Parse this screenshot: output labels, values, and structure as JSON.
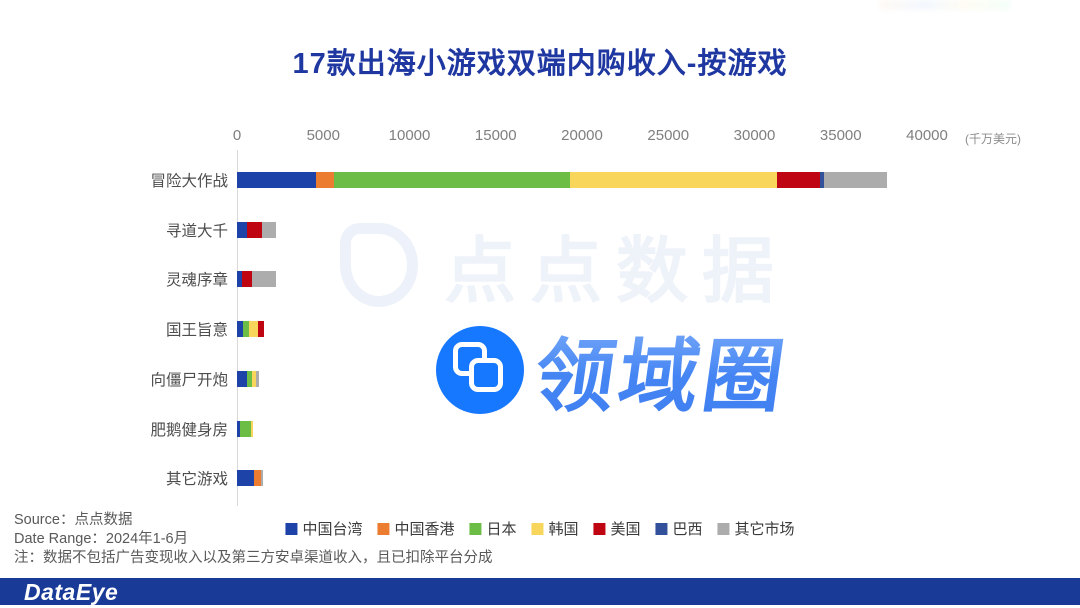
{
  "title": "17款出海小游戏双端内购收入-按游戏",
  "watermarks": {
    "diandian_text": "点点数据",
    "lingyuquan_text": "领域圈"
  },
  "source": {
    "source_line": "Source：点点数据",
    "date_line": "Date Range：2024年1-6月",
    "note_line": "注：数据不包括广告变现收入以及第三方安卓渠道收入，且已扣除平台分成"
  },
  "footer": {
    "logo_text": "DataEye"
  },
  "chart_data": {
    "type": "bar",
    "orientation": "horizontal",
    "stacked": true,
    "title": "17款出海小游戏双端内购收入-按游戏",
    "unit_label": "(千万美元)",
    "xlabel": "",
    "ylabel": "",
    "xlim": [
      0,
      40000
    ],
    "xticks": [
      0,
      5000,
      10000,
      15000,
      20000,
      25000,
      30000,
      35000,
      40000
    ],
    "grid": false,
    "legend_position": "bottom",
    "categories": [
      "冒险大作战",
      "寻道大千",
      "灵魂序章",
      "国王旨意",
      "向僵尸开炮",
      "肥鹅健身房",
      "其它游戏"
    ],
    "series": [
      {
        "name": "中国台湾",
        "color": "#1E43A8",
        "values": [
          4600,
          580,
          300,
          320,
          600,
          160,
          980
        ]
      },
      {
        "name": "中国香港",
        "color": "#EC7C30",
        "values": [
          1000,
          0,
          0,
          0,
          0,
          0,
          400
        ]
      },
      {
        "name": "日本",
        "color": "#6CBD45",
        "values": [
          13700,
          0,
          0,
          350,
          290,
          640,
          0
        ]
      },
      {
        "name": "韩国",
        "color": "#F8D65C",
        "values": [
          12000,
          0,
          0,
          520,
          230,
          120,
          0
        ]
      },
      {
        "name": "美国",
        "color": "#BE0511",
        "values": [
          2500,
          870,
          550,
          400,
          0,
          0,
          0
        ]
      },
      {
        "name": "巴西",
        "color": "#33509B",
        "values": [
          200,
          0,
          0,
          0,
          0,
          0,
          0
        ]
      },
      {
        "name": "其它市场",
        "color": "#ACACAC",
        "values": [
          3700,
          810,
          1390,
          0,
          170,
          0,
          100
        ]
      }
    ]
  }
}
